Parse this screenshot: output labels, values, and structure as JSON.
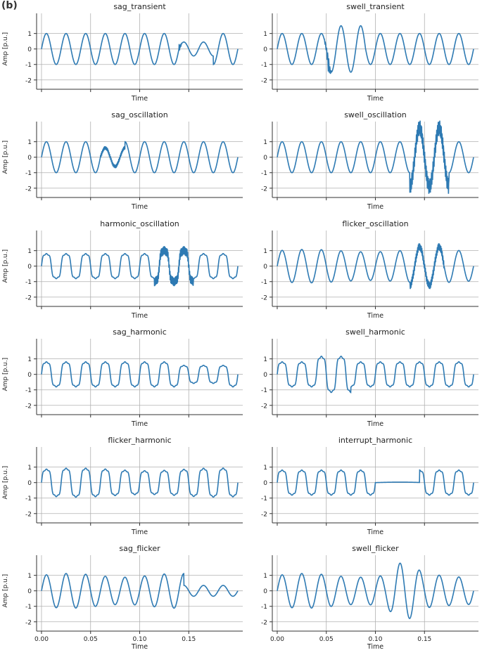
{
  "panel_label": "(b)",
  "colors": {
    "line": "#2e7ab3",
    "grid": "#b0b0b0",
    "axis": "#333333"
  },
  "chart_data": [
    {
      "type": "line",
      "title": "sag_transient",
      "xlabel": "Time",
      "ylabel": "Amp [p.u.]",
      "ylim": [
        -2.6,
        2.3
      ],
      "xlim": [
        -0.005,
        0.205
      ],
      "yticks": [
        1,
        0,
        -1,
        -2
      ],
      "xticks": [
        0,
        0.05,
        0.1,
        0.15
      ],
      "xtick_labels": [],
      "grid": true,
      "legend": "none",
      "signal": {
        "kind": "sag",
        "start": 0.14,
        "end": 0.175,
        "magnitude": 0.45,
        "transient_at": 0.14,
        "transient_amp": 0.35
      }
    },
    {
      "type": "line",
      "title": "swell_transient",
      "xlabel": "Time",
      "ylabel": "",
      "ylim": [
        -2.6,
        2.3
      ],
      "xlim": [
        -0.005,
        0.205
      ],
      "yticks": [
        1,
        0,
        -1,
        -2
      ],
      "xticks": [
        0,
        0.05,
        0.1,
        0.15
      ],
      "xtick_labels": [],
      "grid": true,
      "legend": "none",
      "signal": {
        "kind": "swell",
        "start": 0.05,
        "end": 0.09,
        "magnitude": 1.5,
        "transient_at": 0.052,
        "transient_amp": 0.6
      }
    },
    {
      "type": "line",
      "title": "sag_oscillation",
      "xlabel": "Time",
      "ylabel": "Amp [p.u.]",
      "ylim": [
        -2.6,
        2.3
      ],
      "xlim": [
        -0.005,
        0.205
      ],
      "yticks": [
        1,
        0,
        -1,
        -2
      ],
      "xticks": [
        0,
        0.05,
        0.1,
        0.15
      ],
      "xtick_labels": [],
      "grid": true,
      "legend": "none",
      "signal": {
        "kind": "sag_osc",
        "start": 0.06,
        "end": 0.085,
        "magnitude": 0.6,
        "osc_amp": 0.12
      }
    },
    {
      "type": "line",
      "title": "swell_oscillation",
      "xlabel": "Time",
      "ylabel": "",
      "ylim": [
        -2.6,
        2.3
      ],
      "xlim": [
        -0.005,
        0.205
      ],
      "yticks": [
        1,
        0,
        -1,
        -2
      ],
      "xticks": [
        0,
        0.05,
        0.1,
        0.15
      ],
      "xtick_labels": [],
      "grid": true,
      "legend": "none",
      "signal": {
        "kind": "swell_osc",
        "start": 0.135,
        "end": 0.175,
        "magnitude": 1.9,
        "osc_amp": 0.5
      }
    },
    {
      "type": "line",
      "title": "harmonic_oscillation",
      "xlabel": "Time",
      "ylabel": "Amp [p.u.]",
      "ylim": [
        -2.6,
        2.3
      ],
      "xlim": [
        -0.005,
        0.205
      ],
      "yticks": [
        1,
        0,
        -1,
        -2
      ],
      "xticks": [
        0,
        0.05,
        0.1,
        0.15
      ],
      "xtick_labels": [],
      "grid": true,
      "legend": "none",
      "signal": {
        "kind": "harm_osc",
        "start": 0.115,
        "end": 0.155,
        "magnitude": 1.15,
        "osc_amp": 0.3
      }
    },
    {
      "type": "line",
      "title": "flicker_oscillation",
      "xlabel": "Time",
      "ylabel": "",
      "ylim": [
        -2.6,
        2.3
      ],
      "xlim": [
        -0.005,
        0.205
      ],
      "yticks": [
        1,
        0,
        -1,
        -2
      ],
      "xticks": [
        0,
        0.05,
        0.1,
        0.15
      ],
      "xtick_labels": [],
      "grid": true,
      "legend": "none",
      "signal": {
        "kind": "flicker_osc",
        "start": 0.135,
        "end": 0.17,
        "magnitude": 1.25,
        "osc_amp": 0.25
      }
    },
    {
      "type": "line",
      "title": "sag_harmonic",
      "xlabel": "Time",
      "ylabel": "Amp [p.u.]",
      "ylim": [
        -2.6,
        2.3
      ],
      "xlim": [
        -0.005,
        0.205
      ],
      "yticks": [
        1,
        0,
        -1,
        -2
      ],
      "xticks": [
        0,
        0.05,
        0.1,
        0.15
      ],
      "xtick_labels": [],
      "grid": true,
      "legend": "none",
      "signal": {
        "kind": "sag_harm",
        "start": 0.14,
        "end": 0.19,
        "magnitude": 0.65
      }
    },
    {
      "type": "line",
      "title": "swell_harmonic",
      "xlabel": "Time",
      "ylabel": "",
      "ylim": [
        -2.6,
        2.3
      ],
      "xlim": [
        -0.005,
        0.205
      ],
      "yticks": [
        1,
        0,
        -1,
        -2
      ],
      "xticks": [
        0,
        0.05,
        0.1,
        0.15
      ],
      "xtick_labels": [],
      "grid": true,
      "legend": "none",
      "signal": {
        "kind": "swell_harm",
        "start": 0.04,
        "end": 0.075,
        "magnitude": 1.3
      }
    },
    {
      "type": "line",
      "title": "flicker_harmonic",
      "xlabel": "Time",
      "ylabel": "Amp [p.u.]",
      "ylim": [
        -2.6,
        2.3
      ],
      "xlim": [
        -0.005,
        0.205
      ],
      "yticks": [
        1,
        0,
        -1,
        -2
      ],
      "xticks": [
        0,
        0.05,
        0.1,
        0.15
      ],
      "xtick_labels": [],
      "grid": true,
      "legend": "none",
      "signal": {
        "kind": "flicker_harm",
        "start": 0,
        "end": 0.2,
        "magnitude": 1.0
      }
    },
    {
      "type": "line",
      "title": "interrupt_harmonic",
      "xlabel": "Time",
      "ylabel": "",
      "ylim": [
        -2.6,
        2.3
      ],
      "xlim": [
        -0.005,
        0.205
      ],
      "yticks": [
        1,
        0,
        -1,
        -2
      ],
      "xticks": [
        0,
        0.05,
        0.1,
        0.15
      ],
      "xtick_labels": [],
      "grid": true,
      "legend": "none",
      "signal": {
        "kind": "interrupt_harm",
        "start": 0.1,
        "end": 0.145,
        "magnitude": 0.03
      }
    },
    {
      "type": "line",
      "title": "sag_flicker",
      "xlabel": "Time",
      "ylabel": "Amp [p.u.]",
      "ylim": [
        -2.6,
        2.3
      ],
      "xlim": [
        -0.005,
        0.205
      ],
      "yticks": [
        1,
        0,
        -1,
        -2
      ],
      "xticks": [
        0,
        0.05,
        0.1,
        0.15
      ],
      "xtick_labels": [
        "0.00",
        "0.05",
        "0.10",
        "0.15"
      ],
      "grid": true,
      "legend": "none",
      "signal": {
        "kind": "sag_flicker",
        "start": 0.145,
        "end": 0.2,
        "magnitude": 0.35
      }
    },
    {
      "type": "line",
      "title": "swell_flicker",
      "xlabel": "Time",
      "ylabel": "",
      "ylim": [
        -2.6,
        2.3
      ],
      "xlim": [
        -0.005,
        0.205
      ],
      "yticks": [
        1,
        0,
        -1,
        -2
      ],
      "xticks": [
        0,
        0.05,
        0.1,
        0.15
      ],
      "xtick_labels": [
        "0.00",
        "0.05",
        "0.10",
        "0.15"
      ],
      "grid": true,
      "legend": "none",
      "signal": {
        "kind": "swell_flicker",
        "start": 0.11,
        "end": 0.15,
        "magnitude": 1.85
      }
    }
  ]
}
